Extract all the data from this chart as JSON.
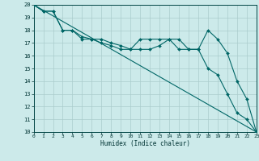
{
  "xlabel": "Humidex (Indice chaleur)",
  "background_color": "#cceaea",
  "grid_color": "#aacccc",
  "line_color": "#006666",
  "xlim": [
    0,
    23
  ],
  "ylim": [
    10,
    20
  ],
  "xticks": [
    0,
    1,
    2,
    3,
    4,
    5,
    6,
    7,
    8,
    9,
    10,
    11,
    12,
    13,
    14,
    15,
    16,
    17,
    18,
    19,
    20,
    21,
    22,
    23
  ],
  "yticks": [
    10,
    11,
    12,
    13,
    14,
    15,
    16,
    17,
    18,
    19,
    20
  ],
  "line1_x": [
    0,
    1,
    2,
    3,
    4,
    5,
    6,
    7,
    8,
    9,
    10,
    11,
    12,
    13,
    14,
    15,
    16,
    17,
    18,
    19,
    20,
    21,
    22,
    23
  ],
  "line1_y": [
    20.0,
    19.5,
    19.5,
    18.0,
    18.0,
    17.5,
    17.3,
    17.3,
    17.0,
    16.8,
    16.5,
    17.3,
    17.3,
    17.3,
    17.3,
    17.3,
    16.5,
    16.5,
    18.0,
    17.3,
    16.2,
    14.0,
    12.6,
    10.0
  ],
  "line2_x": [
    0,
    1,
    2,
    3,
    4,
    5,
    6,
    7,
    8,
    9,
    10,
    11,
    12,
    13,
    14,
    15,
    16,
    17,
    18,
    19,
    20,
    21,
    22,
    23
  ],
  "line2_y": [
    20.0,
    19.5,
    19.5,
    18.0,
    18.0,
    17.3,
    17.3,
    17.0,
    16.8,
    16.5,
    16.5,
    16.5,
    16.5,
    16.8,
    17.3,
    16.5,
    16.5,
    16.5,
    15.0,
    14.5,
    13.0,
    11.5,
    11.0,
    10.0
  ],
  "line3_x": [
    0,
    23
  ],
  "line3_y": [
    20.0,
    10.0
  ]
}
